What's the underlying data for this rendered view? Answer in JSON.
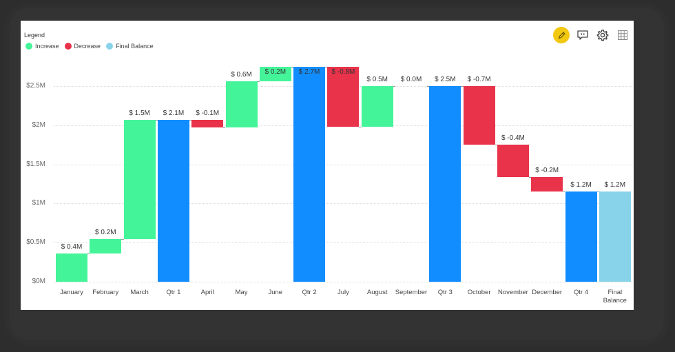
{
  "legend": {
    "title": "Legend",
    "items": [
      {
        "label": "Increase",
        "color": "#44f499"
      },
      {
        "label": "Decrease",
        "color": "#e8334a"
      },
      {
        "label": "Final Balance",
        "color": "#89d3ea"
      }
    ]
  },
  "toolbar": {
    "icons": [
      "pencil-icon",
      "comment-icon",
      "gear-icon",
      "grid-icon"
    ],
    "edit_color": "#f2c811"
  },
  "colors": {
    "increase": "#44f499",
    "decrease": "#e8334a",
    "subtotal": "#118dff",
    "final": "#89d3ea"
  },
  "chart_data": {
    "type": "bar",
    "subtype": "waterfall",
    "title": "",
    "xlabel": "",
    "ylabel": "",
    "ylim": [
      0,
      2.75
    ],
    "yticks": [
      "$0M",
      "$0.5M",
      "$1M",
      "$1.5M",
      "$2M",
      "$2.5M"
    ],
    "ytick_values": [
      0,
      0.5,
      1,
      1.5,
      2,
      2.5
    ],
    "grid": true,
    "legend_position": "top-left",
    "categories": [
      "January",
      "February",
      "March",
      "Qtr 1",
      "April",
      "May",
      "June",
      "Qtr 2",
      "July",
      "August",
      "September",
      "Qtr 3",
      "October",
      "November",
      "December",
      "Qtr 4",
      "Final Balance"
    ],
    "labels": [
      "$ 0.4M",
      "$ 0.2M",
      "$ 1.5M",
      "$ 2.1M",
      "$ -0.1M",
      "$ 0.6M",
      "$ 0.2M",
      "$ 2.7M",
      "$ -0.8M",
      "$ 0.5M",
      "$ 0.0M",
      "$ 2.5M",
      "$ -0.7M",
      "$ -0.4M",
      "$ -0.2M",
      "$ 1.2M",
      "$ 1.2M"
    ],
    "kinds": [
      "increase",
      "increase",
      "increase",
      "subtotal",
      "decrease",
      "increase",
      "increase",
      "subtotal",
      "decrease",
      "increase",
      "increase",
      "subtotal",
      "decrease",
      "decrease",
      "decrease",
      "subtotal",
      "final"
    ],
    "values": [
      0.36,
      0.19,
      1.51,
      2.07,
      -0.1,
      0.59,
      0.2,
      2.75,
      -0.77,
      0.52,
      0.0,
      2.5,
      -0.75,
      -0.41,
      -0.19,
      1.15,
      1.15
    ],
    "starts": [
      0,
      0.36,
      0.55,
      0,
      2.07,
      1.97,
      2.56,
      0,
      2.75,
      1.98,
      2.5,
      0,
      2.5,
      1.75,
      1.34,
      0,
      0
    ],
    "ends": [
      0.36,
      0.55,
      2.07,
      2.07,
      1.97,
      2.56,
      2.75,
      2.75,
      1.98,
      2.5,
      2.5,
      2.5,
      1.75,
      1.34,
      1.15,
      1.15,
      1.15
    ],
    "label_inside": [
      false,
      false,
      false,
      false,
      false,
      false,
      true,
      true,
      true,
      false,
      false,
      false,
      false,
      false,
      false,
      false,
      false
    ],
    "series": [
      {
        "name": "Increase",
        "color": "#44f499"
      },
      {
        "name": "Decrease",
        "color": "#e8334a"
      },
      {
        "name": "Final Balance",
        "color": "#89d3ea"
      }
    ]
  }
}
